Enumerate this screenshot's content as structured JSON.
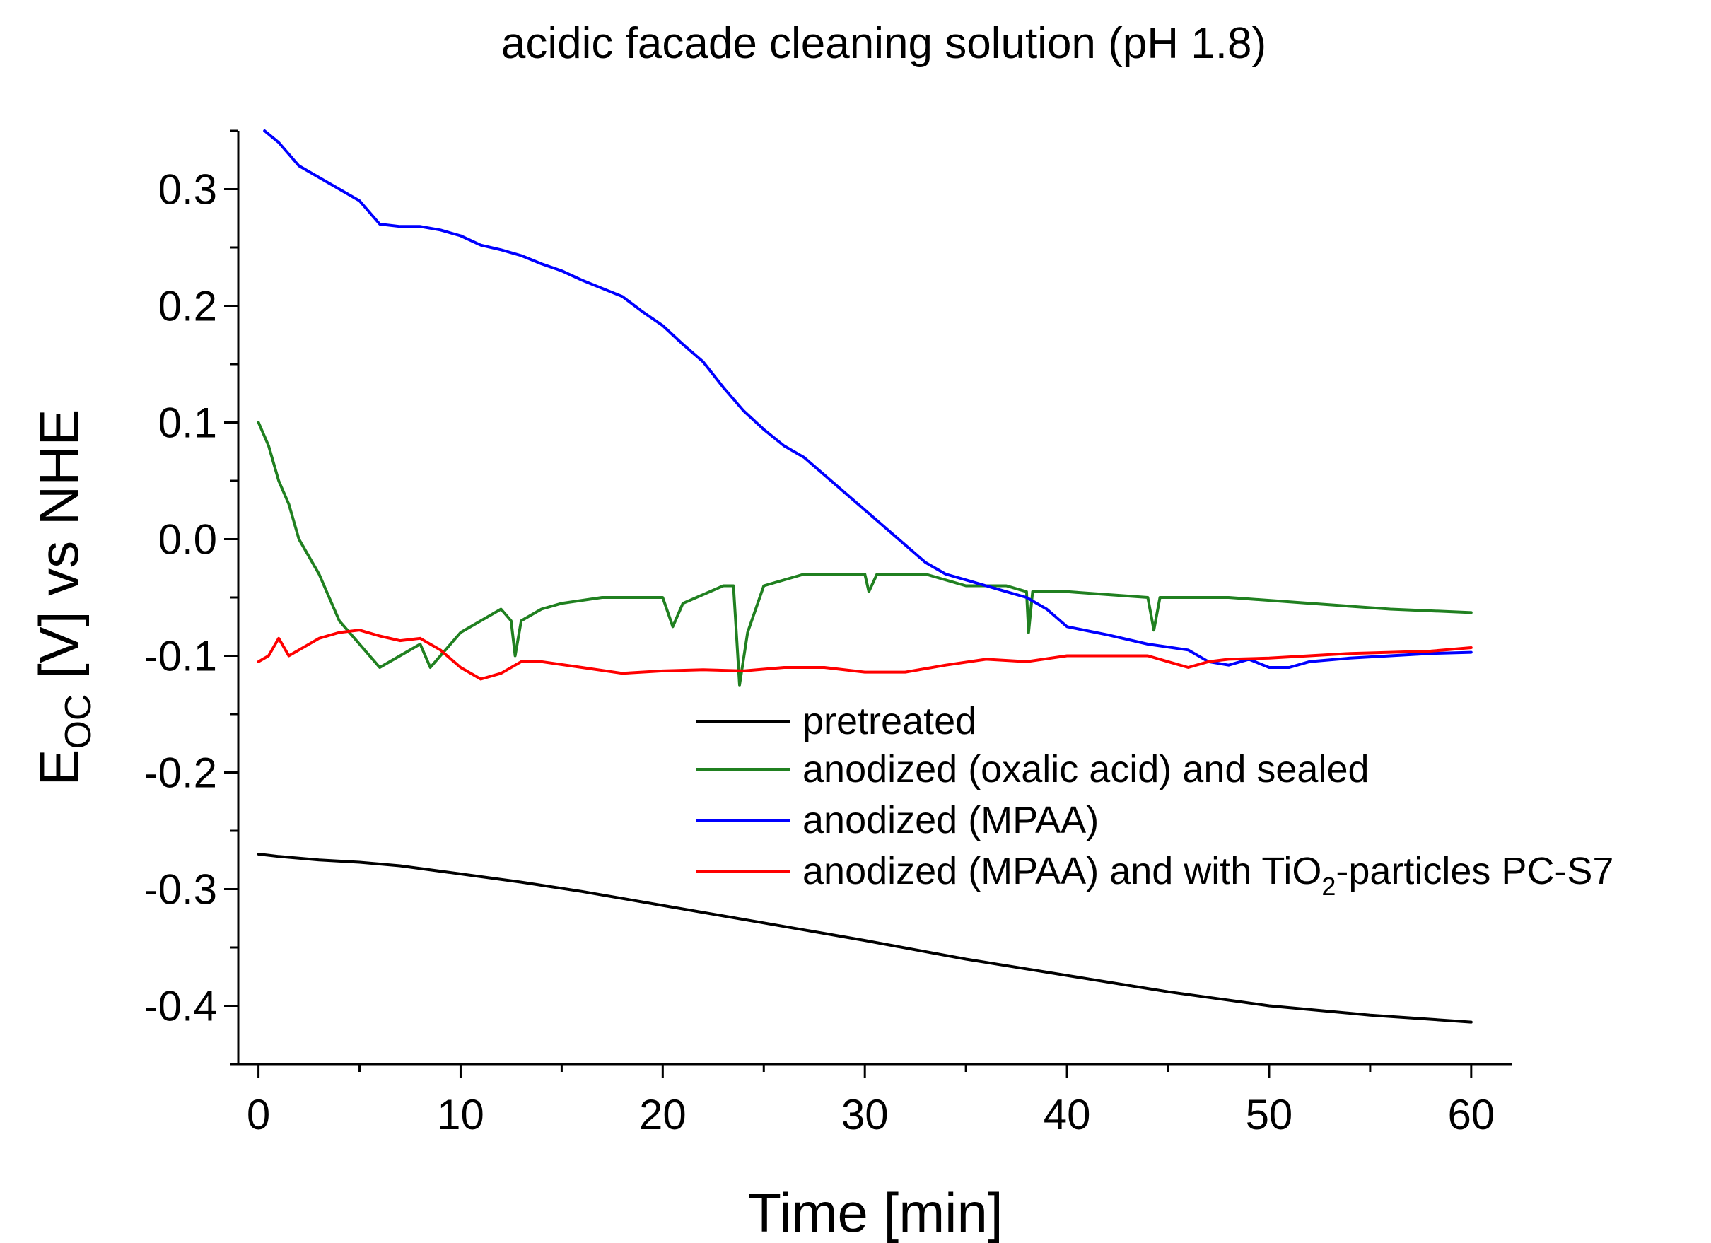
{
  "chart_data": {
    "type": "line",
    "title": "acidic facade cleaning solution (pH 1.8)",
    "xlabel": "Time [min]",
    "ylabel": {
      "main": "E",
      "sub": "OC",
      "rest": " [V] vs NHE"
    },
    "xlim": [
      -1,
      62
    ],
    "ylim": [
      -0.45,
      0.35
    ],
    "x_ticks": [
      0,
      10,
      20,
      30,
      40,
      50,
      60
    ],
    "x_tick_labels": [
      "0",
      "10",
      "20",
      "30",
      "40",
      "50",
      "60"
    ],
    "x_minor_step": 5,
    "y_ticks": [
      -0.4,
      -0.3,
      -0.2,
      -0.1,
      0.0,
      0.1,
      0.2,
      0.3
    ],
    "y_tick_labels": [
      "-0.4",
      "-0.3",
      "-0.2",
      "-0.1",
      "0.0",
      "0.1",
      "0.2",
      "0.3"
    ],
    "y_minor_step": 0.05,
    "grid": false,
    "legend_position": "center-right",
    "series": [
      {
        "name": "pretreated",
        "color": "#000000",
        "points": [
          [
            0,
            -0.27
          ],
          [
            1,
            -0.272
          ],
          [
            3,
            -0.275
          ],
          [
            5,
            -0.277
          ],
          [
            7,
            -0.28
          ],
          [
            10,
            -0.287
          ],
          [
            13,
            -0.294
          ],
          [
            16,
            -0.302
          ],
          [
            20,
            -0.314
          ],
          [
            25,
            -0.329
          ],
          [
            30,
            -0.344
          ],
          [
            35,
            -0.36
          ],
          [
            40,
            -0.374
          ],
          [
            45,
            -0.388
          ],
          [
            50,
            -0.4
          ],
          [
            55,
            -0.408
          ],
          [
            60,
            -0.414
          ]
        ]
      },
      {
        "name": "anodized (oxalic acid) and sealed",
        "color": "#208020",
        "points": [
          [
            0,
            0.1
          ],
          [
            0.5,
            0.08
          ],
          [
            1,
            0.05
          ],
          [
            1.5,
            0.03
          ],
          [
            2,
            0.0
          ],
          [
            3,
            -0.03
          ],
          [
            4,
            -0.07
          ],
          [
            5,
            -0.09
          ],
          [
            6,
            -0.11
          ],
          [
            7,
            -0.1
          ],
          [
            8,
            -0.09
          ],
          [
            8.5,
            -0.11
          ],
          [
            9,
            -0.1
          ],
          [
            10,
            -0.08
          ],
          [
            12,
            -0.06
          ],
          [
            12.5,
            -0.07
          ],
          [
            12.7,
            -0.1
          ],
          [
            13,
            -0.07
          ],
          [
            14,
            -0.06
          ],
          [
            15,
            -0.055
          ],
          [
            17,
            -0.05
          ],
          [
            20,
            -0.05
          ],
          [
            20.5,
            -0.075
          ],
          [
            21,
            -0.055
          ],
          [
            23,
            -0.04
          ],
          [
            23.5,
            -0.04
          ],
          [
            23.8,
            -0.125
          ],
          [
            24.2,
            -0.08
          ],
          [
            25,
            -0.04
          ],
          [
            27,
            -0.03
          ],
          [
            30,
            -0.03
          ],
          [
            30.2,
            -0.045
          ],
          [
            30.6,
            -0.03
          ],
          [
            33,
            -0.03
          ],
          [
            35,
            -0.04
          ],
          [
            37,
            -0.04
          ],
          [
            38,
            -0.045
          ],
          [
            38.1,
            -0.08
          ],
          [
            38.3,
            -0.045
          ],
          [
            40,
            -0.045
          ],
          [
            44,
            -0.05
          ],
          [
            44.3,
            -0.078
          ],
          [
            44.6,
            -0.05
          ],
          [
            48,
            -0.05
          ],
          [
            52,
            -0.055
          ],
          [
            56,
            -0.06
          ],
          [
            60,
            -0.063
          ]
        ]
      },
      {
        "name": "anodized (MPAA)",
        "color": "#0000ff",
        "points": [
          [
            0.3,
            0.35
          ],
          [
            1,
            0.34
          ],
          [
            2,
            0.32
          ],
          [
            3,
            0.31
          ],
          [
            4,
            0.3
          ],
          [
            5,
            0.29
          ],
          [
            5.5,
            0.28
          ],
          [
            6,
            0.27
          ],
          [
            7,
            0.268
          ],
          [
            8,
            0.268
          ],
          [
            9,
            0.265
          ],
          [
            10,
            0.26
          ],
          [
            11,
            0.252
          ],
          [
            12,
            0.248
          ],
          [
            13,
            0.243
          ],
          [
            14,
            0.236
          ],
          [
            15,
            0.23
          ],
          [
            16,
            0.222
          ],
          [
            17,
            0.215
          ],
          [
            18,
            0.208
          ],
          [
            19,
            0.195
          ],
          [
            20,
            0.183
          ],
          [
            21,
            0.167
          ],
          [
            22,
            0.152
          ],
          [
            23,
            0.13
          ],
          [
            24,
            0.11
          ],
          [
            25,
            0.094
          ],
          [
            26,
            0.08
          ],
          [
            27,
            0.07
          ],
          [
            28,
            0.055
          ],
          [
            29,
            0.04
          ],
          [
            30,
            0.025
          ],
          [
            31,
            0.01
          ],
          [
            32,
            -0.005
          ],
          [
            33,
            -0.02
          ],
          [
            34,
            -0.03
          ],
          [
            35,
            -0.035
          ],
          [
            36,
            -0.04
          ],
          [
            37,
            -0.045
          ],
          [
            38,
            -0.05
          ],
          [
            39,
            -0.06
          ],
          [
            40,
            -0.075
          ],
          [
            42,
            -0.082
          ],
          [
            44,
            -0.09
          ],
          [
            46,
            -0.095
          ],
          [
            47,
            -0.105
          ],
          [
            48,
            -0.108
          ],
          [
            49,
            -0.103
          ],
          [
            50,
            -0.11
          ],
          [
            51,
            -0.11
          ],
          [
            52,
            -0.105
          ],
          [
            54,
            -0.102
          ],
          [
            56,
            -0.1
          ],
          [
            58,
            -0.098
          ],
          [
            60,
            -0.097
          ]
        ]
      },
      {
        "name": "anodized (MPAA) and with TiO2-particles PC-S7",
        "legend_parts": [
          "anodized (MPAA) and with TiO",
          "2",
          "-particles PC-S7"
        ],
        "color": "#ff0000",
        "points": [
          [
            0,
            -0.105
          ],
          [
            0.5,
            -0.1
          ],
          [
            1,
            -0.085
          ],
          [
            1.5,
            -0.1
          ],
          [
            2,
            -0.095
          ],
          [
            3,
            -0.085
          ],
          [
            4,
            -0.08
          ],
          [
            5,
            -0.078
          ],
          [
            6,
            -0.083
          ],
          [
            7,
            -0.087
          ],
          [
            8,
            -0.085
          ],
          [
            9,
            -0.095
          ],
          [
            10,
            -0.11
          ],
          [
            11,
            -0.12
          ],
          [
            12,
            -0.115
          ],
          [
            13,
            -0.105
          ],
          [
            14,
            -0.105
          ],
          [
            16,
            -0.11
          ],
          [
            18,
            -0.115
          ],
          [
            20,
            -0.113
          ],
          [
            22,
            -0.112
          ],
          [
            24,
            -0.113
          ],
          [
            26,
            -0.11
          ],
          [
            28,
            -0.11
          ],
          [
            30,
            -0.114
          ],
          [
            32,
            -0.114
          ],
          [
            34,
            -0.108
          ],
          [
            36,
            -0.103
          ],
          [
            38,
            -0.105
          ],
          [
            40,
            -0.1
          ],
          [
            42,
            -0.1
          ],
          [
            44,
            -0.1
          ],
          [
            45,
            -0.105
          ],
          [
            46,
            -0.11
          ],
          [
            47,
            -0.105
          ],
          [
            48,
            -0.103
          ],
          [
            50,
            -0.102
          ],
          [
            52,
            -0.1
          ],
          [
            54,
            -0.098
          ],
          [
            56,
            -0.097
          ],
          [
            58,
            -0.096
          ],
          [
            60,
            -0.093
          ]
        ]
      }
    ]
  }
}
